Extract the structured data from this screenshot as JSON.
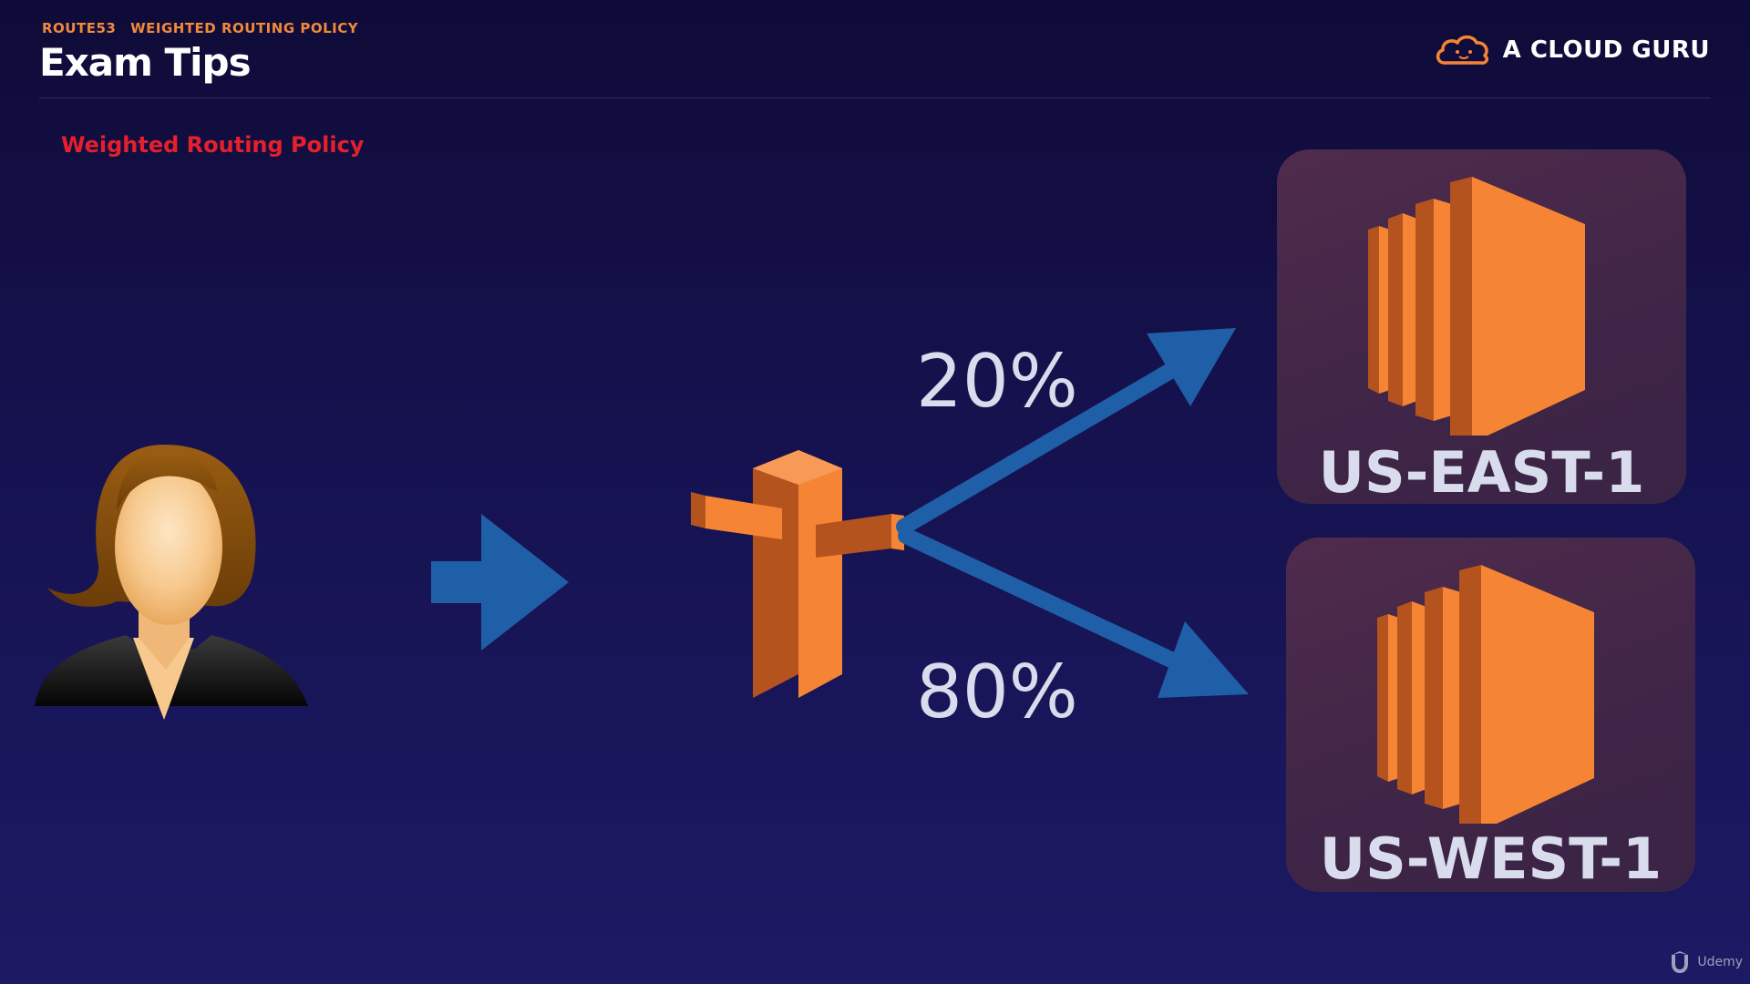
{
  "header": {
    "eyebrow_topic": "ROUTE53",
    "eyebrow_section": "WEIGHTED ROUTING POLICY",
    "title": "Exam Tips",
    "brand": "A CLOUD GURU"
  },
  "subtitle": "Weighted Routing Policy",
  "regions": [
    {
      "label": "US-EAST-1",
      "weight": "20%"
    },
    {
      "label": "US-WEST-1",
      "weight": "80%"
    }
  ],
  "footer": {
    "watermark": "Udemy"
  },
  "colors": {
    "accent_orange": "#f08a3a",
    "subtitle_red": "#e5202c",
    "arrow_blue": "#1f5fa8",
    "aws_orange": "#f58534",
    "aws_orange_dark": "#b5531f"
  },
  "icons": {
    "user": "user-avatar-icon",
    "route53": "route53-icon",
    "ec2": "ec2-icon",
    "brand": "cloud-logo-icon"
  }
}
